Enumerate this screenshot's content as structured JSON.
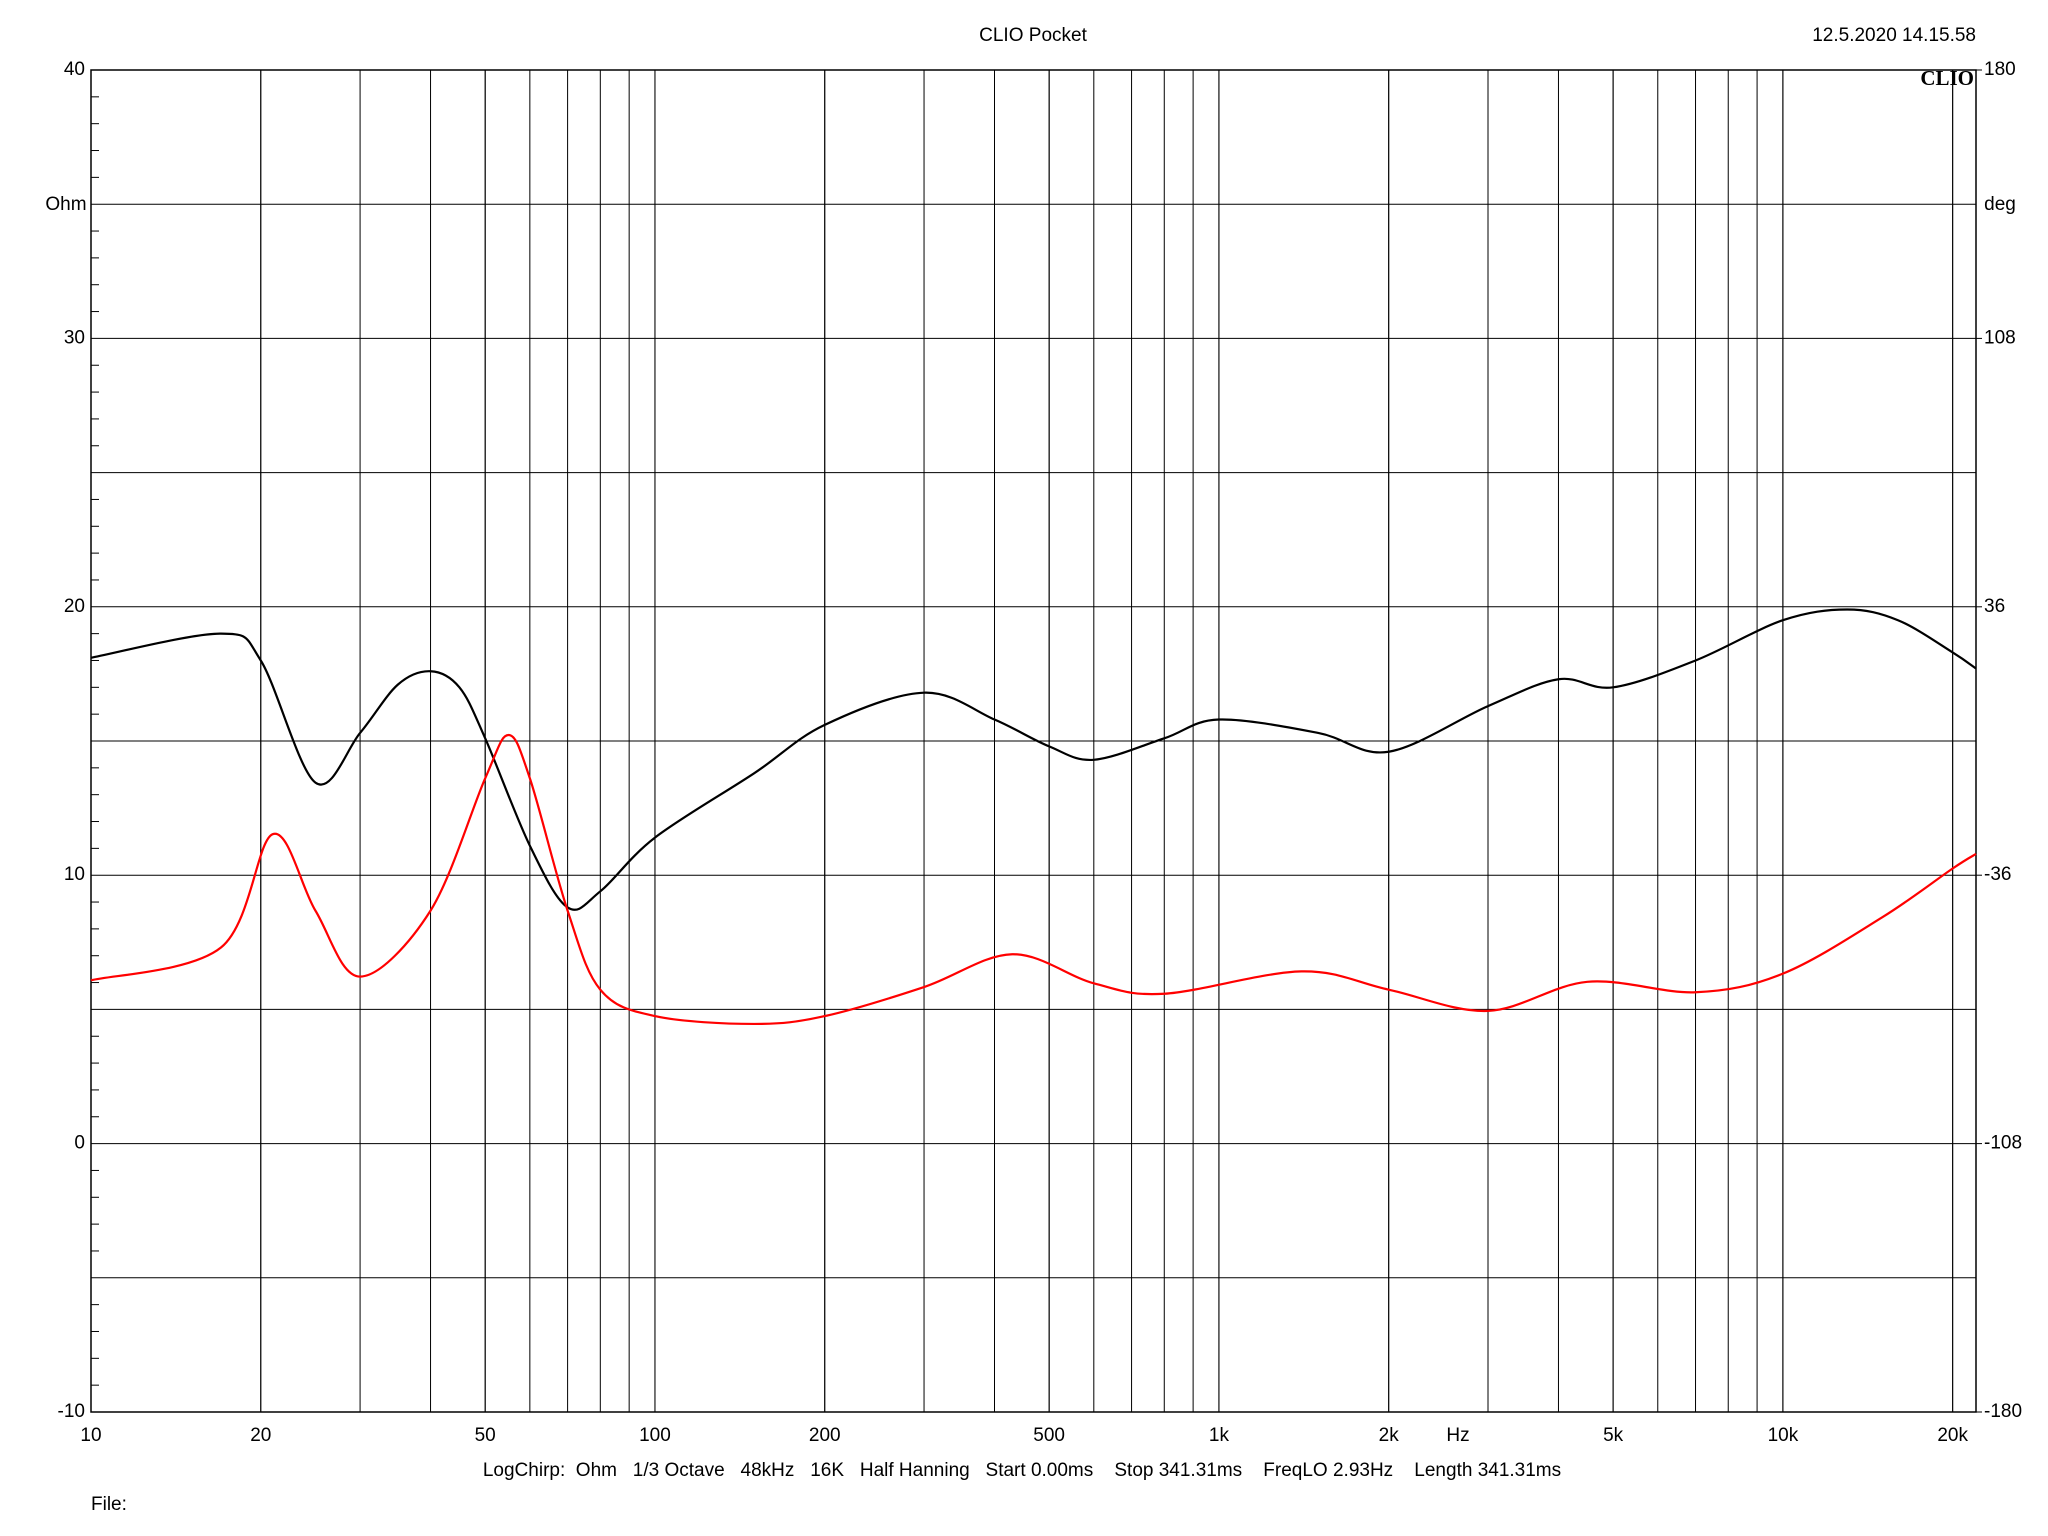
{
  "chart_data": {
    "type": "line",
    "title": "CLIO Pocket",
    "timestamp": "12.5.2020 14.15.58",
    "logo": "CLIO",
    "y_label": "Ohm",
    "y2_label": "deg",
    "x_unit": "Hz",
    "footer": "LogChirp:  Ohm   1/3 Octave   48kHz   16K   Half Hanning   Start 0.00ms    Stop 341.31ms    FreqLO 2.93Hz    Length 341.31ms",
    "file_label": "File:",
    "x_scale": "log",
    "grid": true,
    "xlim": [
      10,
      22000
    ],
    "xticks": [
      10,
      20,
      50,
      100,
      200,
      500,
      {
        "value": 1000,
        "label": "1k"
      },
      {
        "value": 2000,
        "label": "2k"
      },
      {
        "value": 5000,
        "label": "5k"
      },
      {
        "value": 10000,
        "label": "10k"
      },
      {
        "value": 20000,
        "label": "20k"
      }
    ],
    "ylim": [
      -10,
      40
    ],
    "yticks": [
      -10,
      0,
      10,
      20,
      30,
      40
    ],
    "y2lim": [
      -180,
      180
    ],
    "y2ticks": [
      -180,
      -108,
      -36,
      36,
      108,
      180
    ],
    "series": [
      {
        "color": "#000000",
        "x": [
          10,
          17,
          20,
          25,
          30,
          35,
          40,
          45,
          50,
          60,
          70,
          80,
          100,
          150,
          200,
          300,
          400,
          500,
          600,
          800,
          1000,
          1500,
          2000,
          3000,
          4000,
          5000,
          7000,
          10000,
          13000,
          16000,
          20000,
          22000
        ],
        "values": [
          18.1,
          19.0,
          18.0,
          13.45,
          15.3,
          17.1,
          17.6,
          17.0,
          15.1,
          11.1,
          8.8,
          9.4,
          11.4,
          13.8,
          15.6,
          16.8,
          15.8,
          14.8,
          14.3,
          15.1,
          15.8,
          15.3,
          14.6,
          16.3,
          17.3,
          17.0,
          18.0,
          19.5,
          19.9,
          19.5,
          18.3,
          17.7
        ]
      },
      {
        "color": "#ff0000",
        "axis": "y2",
        "x": [
          10,
          17,
          21,
          25,
          30,
          40,
          50,
          55,
          60,
          70,
          80,
          100,
          150,
          200,
          300,
          430,
          600,
          800,
          1400,
          2000,
          3000,
          4500,
          7000,
          10000,
          15000,
          20000,
          22000
        ],
        "values": [
          -64.2,
          -55.4,
          -25,
          -45.5,
          -63.2,
          -45.5,
          -10,
          1.6,
          -10,
          -45.5,
          -66.7,
          -73.8,
          -75.9,
          -73.8,
          -66,
          -57.2,
          -65,
          -67.8,
          -61.8,
          -66.7,
          -72.4,
          -64.6,
          -67.4,
          -62.4,
          -47.3,
          -34.2,
          -30.3
        ]
      }
    ]
  }
}
